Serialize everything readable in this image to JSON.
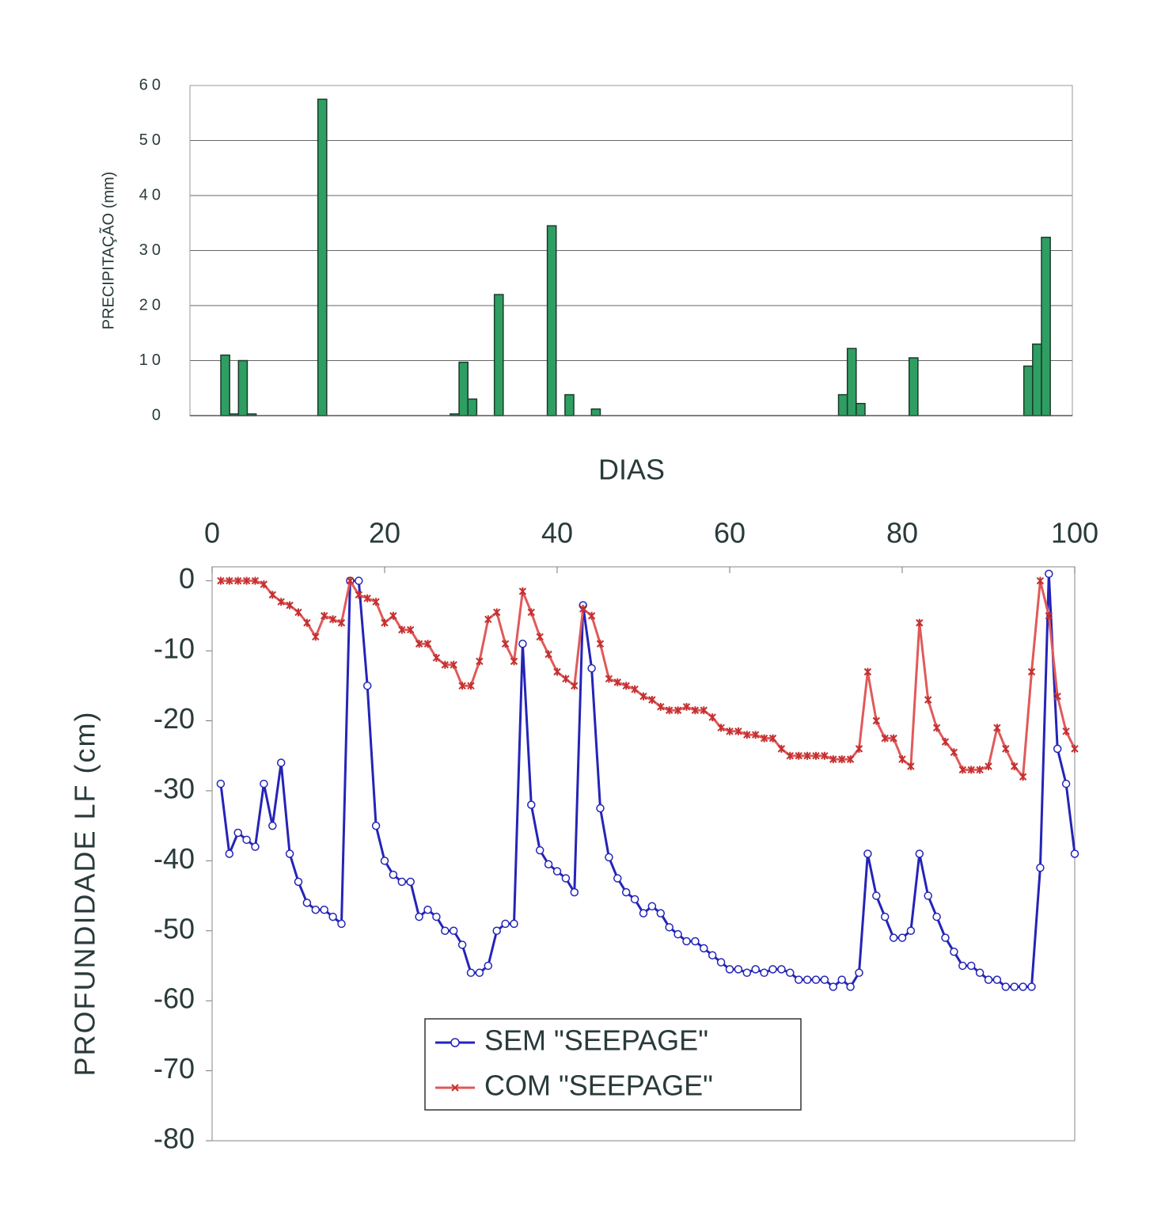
{
  "chart_data": [
    {
      "type": "bar",
      "y_label": "PRECIPITAÇÃO (mm)",
      "color": "#2f9e63",
      "x": [
        4,
        5,
        6,
        7,
        15,
        30,
        31,
        32,
        35,
        41,
        43,
        46,
        74,
        75,
        76,
        82,
        95,
        96,
        97
      ],
      "values": [
        11,
        0.3,
        10,
        0.3,
        57.5,
        0.3,
        9.7,
        3,
        22,
        34.5,
        3.8,
        1.2,
        3.8,
        12.2,
        2.2,
        10.5,
        9,
        13,
        32.4
      ],
      "xlim": [
        0,
        100
      ],
      "ylim": [
        0,
        60
      ],
      "yticks": [
        0,
        10,
        20,
        30,
        40,
        50,
        60
      ],
      "grid": true
    },
    {
      "type": "line",
      "x_label": "DIAS",
      "y_label": "PROFUNDIDADE  LF (cm)",
      "legend": "bottom-center",
      "x": [
        1,
        2,
        3,
        4,
        5,
        6,
        7,
        8,
        9,
        10,
        11,
        12,
        13,
        14,
        15,
        16,
        17,
        18,
        19,
        20,
        21,
        22,
        23,
        24,
        25,
        26,
        27,
        28,
        29,
        30,
        31,
        32,
        33,
        34,
        35,
        36,
        37,
        38,
        39,
        40,
        41,
        42,
        43,
        44,
        45,
        46,
        47,
        48,
        49,
        50,
        51,
        52,
        53,
        54,
        55,
        56,
        57,
        58,
        59,
        60,
        61,
        62,
        63,
        64,
        65,
        66,
        67,
        68,
        69,
        70,
        71,
        72,
        73,
        74,
        75,
        76,
        77,
        78,
        79,
        80,
        81,
        82,
        83,
        84,
        85,
        86,
        87,
        88,
        89,
        90,
        91,
        92,
        93,
        94,
        95,
        96,
        97,
        98,
        99,
        100
      ],
      "series": [
        {
          "name": "SEM \"SEEPAGE\"",
          "color": "#2424b8",
          "marker": "circle",
          "values": [
            -29,
            -39,
            -36,
            -37,
            -38,
            -29,
            -35,
            -26,
            -39,
            -43,
            -46,
            -47,
            -47,
            -48,
            -49,
            0,
            0,
            -15,
            -35,
            -40,
            -42,
            -43,
            -43,
            -48,
            -47,
            -48,
            -50,
            -50,
            -52,
            -56,
            -56,
            -55,
            -50,
            -49,
            -49,
            -9,
            -32,
            -38.5,
            -40.5,
            -41.5,
            -42.5,
            -44.5,
            -3.5,
            -12.5,
            -32.5,
            -39.5,
            -42.5,
            -44.5,
            -45.5,
            -47.5,
            -46.5,
            -47.5,
            -49.5,
            -50.5,
            -51.5,
            -51.5,
            -52.5,
            -53.5,
            -54.5,
            -55.5,
            -55.5,
            -56,
            -55.5,
            -56,
            -55.5,
            -55.5,
            -56,
            -57,
            -57,
            -57,
            -57,
            -58,
            -57,
            -58,
            -56,
            -39,
            -45,
            -48,
            -51,
            -51,
            -50,
            -39,
            -45,
            -48,
            -51,
            -53,
            -55,
            -55,
            -56,
            -57,
            -57,
            -58,
            -58,
            -58,
            -58,
            -41,
            1,
            -24,
            -29,
            -39
          ]
        },
        {
          "name": "COM \"SEEPAGE\"",
          "color": "#e05a5a",
          "marker": "star",
          "values": [
            0,
            0,
            0,
            0,
            0,
            -0.5,
            -2,
            -3,
            -3.5,
            -4.5,
            -6,
            -8,
            -5,
            -5.5,
            -6,
            0,
            -2,
            -2.5,
            -3,
            -6,
            -5,
            -7,
            -7,
            -9,
            -9,
            -11,
            -12,
            -12,
            -15,
            -15,
            -11.5,
            -5.5,
            -4.5,
            -9,
            -11.5,
            -1.5,
            -4.5,
            -8,
            -10.5,
            -13,
            -14,
            -15,
            -4,
            -5,
            -9,
            -14,
            -14.5,
            -15,
            -15.5,
            -16.5,
            -17,
            -18,
            -18.5,
            -18.5,
            -18,
            -18.5,
            -18.5,
            -19.5,
            -21,
            -21.5,
            -21.5,
            -22,
            -22,
            -22.5,
            -22.5,
            -24,
            -25,
            -25,
            -25,
            -25,
            -25,
            -25.5,
            -25.5,
            -25.5,
            -24,
            -13,
            -20,
            -22.5,
            -22.5,
            -25.5,
            -26.5,
            -6,
            -17,
            -21,
            -23,
            -24.5,
            -27,
            -27,
            -27,
            -26.5,
            -21,
            -24,
            -26.5,
            -28,
            -13,
            0,
            -5,
            -16.5,
            -21.5,
            -24
          ]
        }
      ],
      "xlim": [
        0,
        100
      ],
      "xticks": [
        0,
        20,
        40,
        60,
        80,
        100
      ],
      "ylim": [
        -80,
        2
      ],
      "yticks": [
        0,
        -10,
        -20,
        -30,
        -40,
        -50,
        -60,
        -70,
        -80
      ]
    }
  ]
}
